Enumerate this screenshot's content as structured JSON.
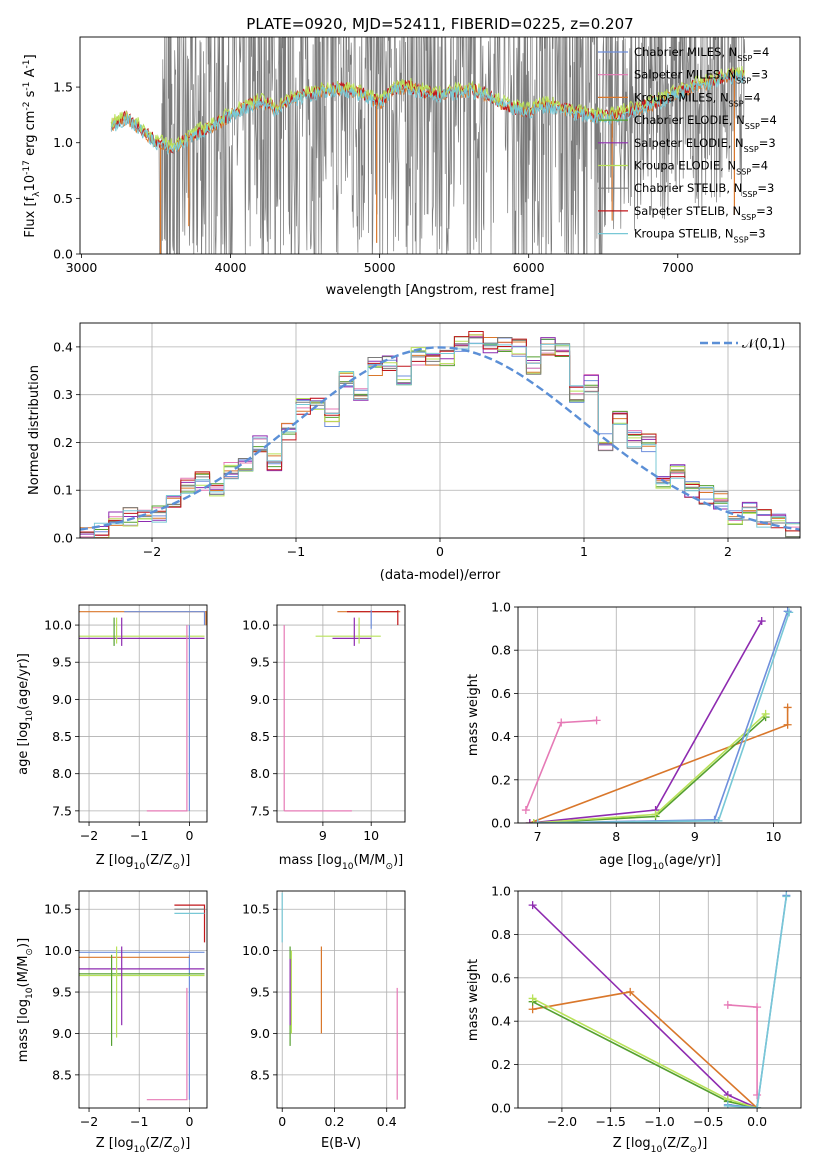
{
  "title": "PLATE=0920, MJD=52411, FIBERID=0225, z=0.207",
  "colors": {
    "Chabrier MILES": "#6f8fdc",
    "Salpeter MILES": "#e67ab6",
    "Kroupa MILES": "#d9772b",
    "Chabrier ELODIE": "#55a030",
    "Salpeter ELODIE": "#8e2bb0",
    "Kroupa ELODIE": "#b9e25a",
    "Chabrier STELIB": "#7a7a7a",
    "Salpeter STELIB": "#c0171b",
    "Kroupa STELIB": "#78c8d6",
    "gaussian": "#5b8fd6"
  },
  "chart_data": [
    {
      "type": "line",
      "id": "spectrum",
      "ylabel": "Flux [f$_\\lambda$10$^{-17}$ erg cm$^{-2}$ s$^{-1}$ A$^{-1}$]",
      "xlabel": "wavelength [Angstrom, rest frame]",
      "xlim": [
        2990,
        7820
      ],
      "ylim": [
        0,
        1.95
      ],
      "xticks": [
        3000,
        4000,
        5000,
        6000,
        7000
      ],
      "yticks": [
        0.0,
        0.5,
        1.0,
        1.5
      ],
      "grid": false,
      "legend_position": "top-right",
      "legend": [
        "Chabrier MILES, N$_{SSP}$=4",
        "Salpeter MILES, N$_{SSP}$=3",
        "Kroupa MILES, N$_{SSP}$=4",
        "Chabrier ELODIE, N$_{SSP}$=4",
        "Salpeter ELODIE, N$_{SSP}$=3",
        "Kroupa ELODIE, N$_{SSP}$=4",
        "Chabrier STELIB, N$_{SSP}$=3",
        "Salpeter STELIB, N$_{SSP}$=3",
        "Kroupa STELIB, N$_{SSP}$=3"
      ],
      "spectrum_x": [
        3200,
        3300,
        3400,
        3500,
        3600,
        3700,
        3800,
        3900,
        4000,
        4100,
        4200,
        4300,
        4400,
        4500,
        4600,
        4700,
        4800,
        4900,
        5000,
        5100,
        5200,
        5300,
        5400,
        5500,
        5600,
        5700,
        5800,
        5900,
        6000,
        6100,
        6200,
        6300,
        6400,
        6500,
        6600,
        6700,
        6800,
        6900,
        7000,
        7100,
        7200,
        7300,
        7400
      ],
      "spectrum_y": [
        1.15,
        1.22,
        1.12,
        1.0,
        0.95,
        1.02,
        1.1,
        1.15,
        1.25,
        1.32,
        1.37,
        1.3,
        1.38,
        1.42,
        1.45,
        1.48,
        1.47,
        1.42,
        1.35,
        1.48,
        1.5,
        1.45,
        1.43,
        1.45,
        1.47,
        1.44,
        1.36,
        1.3,
        1.28,
        1.33,
        1.32,
        1.27,
        1.25,
        1.22,
        1.25,
        1.3,
        1.33,
        1.38,
        1.45,
        1.5,
        1.53,
        1.58,
        1.6
      ]
    },
    {
      "type": "bar",
      "id": "residuals",
      "ylabel": "Normed distribution",
      "xlabel": "(data-model)/error",
      "xlim": [
        -2.5,
        2.5
      ],
      "ylim": [
        0,
        0.45
      ],
      "xticks": [
        -2,
        -1,
        0,
        1,
        2
      ],
      "yticks": [
        0.0,
        0.1,
        0.2,
        0.3,
        0.4
      ],
      "grid": true,
      "legend_position": "top-right",
      "legend": [
        "$\\mathcal{N}(0,1)$"
      ],
      "bin_edges_start": -2.5,
      "bin_width": 0.1,
      "hist_values": [
        0.005,
        0.015,
        0.04,
        0.045,
        0.04,
        0.05,
        0.07,
        0.11,
        0.12,
        0.1,
        0.14,
        0.155,
        0.2,
        0.16,
        0.225,
        0.275,
        0.275,
        0.25,
        0.33,
        0.3,
        0.36,
        0.37,
        0.34,
        0.38,
        0.37,
        0.38,
        0.41,
        0.42,
        0.4,
        0.41,
        0.4,
        0.36,
        0.4,
        0.39,
        0.3,
        0.325,
        0.2,
        0.245,
        0.205,
        0.2,
        0.12,
        0.14,
        0.1,
        0.09,
        0.08,
        0.045,
        0.055,
        0.04,
        0.03,
        0.02
      ],
      "gaussian": {
        "mean": 0,
        "sigma": 1
      }
    },
    {
      "type": "line",
      "id": "age_vs_Z",
      "xlabel": "Z [log$_{10}$($Z$/$Z_\\odot$)]",
      "ylabel": "age  [log$_{10}$($age$/$yr$)]",
      "xlim": [
        -2.2,
        0.35
      ],
      "ylim": [
        7.35,
        10.27
      ],
      "xticks": [
        -2,
        -1,
        0
      ],
      "yticks": [
        7.5,
        8.0,
        8.5,
        9.0,
        9.5,
        10.0
      ],
      "grid": true
    },
    {
      "type": "line",
      "id": "age_vs_mass",
      "xlabel": "mass [log$_{10}$($M$/$M_\\odot$)]",
      "ylabel": "",
      "xlim": [
        8.05,
        10.7
      ],
      "ylim": [
        7.35,
        10.27
      ],
      "xticks": [
        9,
        10
      ],
      "yticks": [
        7.5,
        8.0,
        8.5,
        9.0,
        9.5,
        10.0
      ],
      "grid": true
    },
    {
      "type": "line",
      "id": "massweight_vs_age",
      "xlabel": "age  [log$_{10}$($age$/$yr$)]",
      "ylabel": "mass weight",
      "xlim": [
        6.75,
        10.35
      ],
      "ylim": [
        0,
        1.0
      ],
      "xticks": [
        7,
        8,
        9,
        10
      ],
      "yticks": [
        0.0,
        0.2,
        0.4,
        0.6,
        0.8,
        1.0
      ],
      "grid": true,
      "series": [
        {
          "name": "Salpeter MILES",
          "x": [
            6.85,
            7.3,
            7.75
          ],
          "y": [
            0.06,
            0.465,
            0.475
          ]
        },
        {
          "name": "Kroupa MILES",
          "x": [
            6.9,
            10.18,
            10.18
          ],
          "y": [
            0.0,
            0.455,
            0.535
          ]
        },
        {
          "name": "Salpeter ELODIE",
          "x": [
            6.9,
            8.5,
            9.85
          ],
          "y": [
            0.0,
            0.06,
            0.935
          ]
        },
        {
          "name": "Chabrier ELODIE",
          "x": [
            6.95,
            8.5,
            9.9
          ],
          "y": [
            0.0,
            0.03,
            0.49
          ]
        },
        {
          "name": "Kroupa ELODIE",
          "x": [
            6.95,
            8.5,
            9.9
          ],
          "y": [
            0.0,
            0.04,
            0.505
          ]
        },
        {
          "name": "Chabrier MILES",
          "x": [
            7.0,
            9.25,
            10.18
          ],
          "y": [
            0.0,
            0.015,
            0.98
          ]
        },
        {
          "name": "Kroupa STELIB",
          "x": [
            7.0,
            9.3,
            10.2
          ],
          "y": [
            0.0,
            0.01,
            0.975
          ]
        }
      ]
    },
    {
      "type": "line",
      "id": "mass_vs_Z",
      "xlabel": "Z [log$_{10}$($Z$/$Z_\\odot$)]",
      "ylabel": "mass [log$_{10}$($M$/$M_\\odot$)]",
      "xlim": [
        -2.2,
        0.35
      ],
      "ylim": [
        8.1,
        10.72
      ],
      "xticks": [
        -2,
        -1,
        0
      ],
      "yticks": [
        8.5,
        9.0,
        9.5,
        10.0,
        10.5
      ],
      "grid": true
    },
    {
      "type": "line",
      "id": "mass_vs_EBV",
      "xlabel": "E(B-V)",
      "ylabel": "",
      "xlim": [
        -0.02,
        0.47
      ],
      "ylim": [
        8.1,
        10.72
      ],
      "xticks": [
        0.0,
        0.2,
        0.4
      ],
      "yticks": [
        8.5,
        9.0,
        9.5,
        10.0,
        10.5
      ],
      "grid": true
    },
    {
      "type": "line",
      "id": "massweight_vs_Z",
      "xlabel": "Z [log$_{10}$($Z$/$Z_\\odot$)]",
      "ylabel": "mass weight",
      "xlim": [
        -2.45,
        0.45
      ],
      "ylim": [
        0,
        1.0
      ],
      "xticks": [
        -2.0,
        -1.5,
        -1.0,
        -0.5,
        0.0
      ],
      "yticks": [
        0.0,
        0.2,
        0.4,
        0.6,
        0.8,
        1.0
      ],
      "grid": true,
      "series": [
        {
          "name": "Salpeter ELODIE",
          "x": [
            -2.3,
            -0.3,
            0.0
          ],
          "y": [
            0.935,
            0.06,
            0.0
          ]
        },
        {
          "name": "Kroupa MILES",
          "x": [
            -2.3,
            -1.3,
            0.0
          ],
          "y": [
            0.455,
            0.535,
            0.0
          ]
        },
        {
          "name": "Chabrier ELODIE",
          "x": [
            -2.3,
            -0.3,
            0.0
          ],
          "y": [
            0.49,
            0.03,
            0.0
          ]
        },
        {
          "name": "Kroupa ELODIE",
          "x": [
            -2.3,
            -0.3,
            0.0
          ],
          "y": [
            0.505,
            0.04,
            0.0
          ]
        },
        {
          "name": "Salpeter MILES",
          "x": [
            -0.3,
            0.0,
            0.0
          ],
          "y": [
            0.475,
            0.465,
            0.06
          ]
        },
        {
          "name": "Chabrier MILES",
          "x": [
            -0.3,
            0.0,
            0.3
          ],
          "y": [
            0.015,
            0.0,
            0.98
          ]
        },
        {
          "name": "Kroupa STELIB",
          "x": [
            -0.3,
            0.0,
            0.3
          ],
          "y": [
            0.01,
            0.0,
            0.975
          ]
        }
      ]
    }
  ]
}
